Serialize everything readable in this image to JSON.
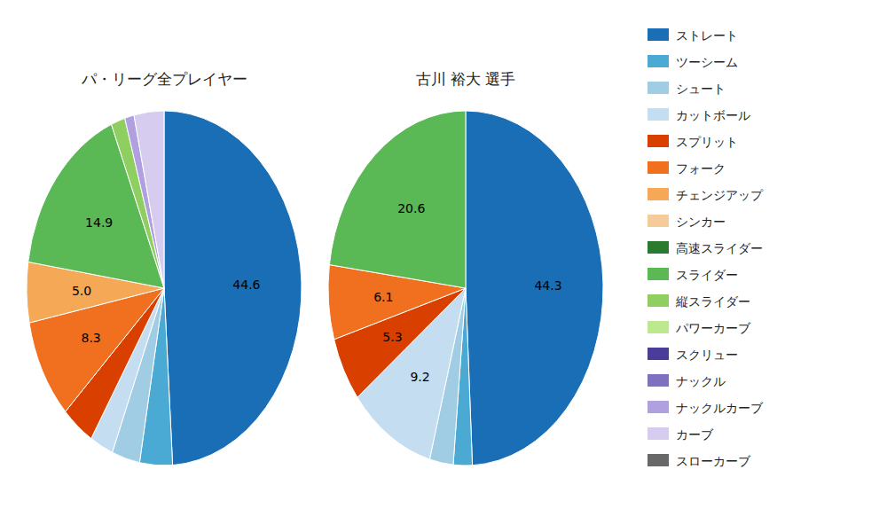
{
  "chart_data": {
    "type": "pie",
    "categories": [
      "ストレート",
      "ツーシーム",
      "シュート",
      "カットボール",
      "スプリット",
      "フォーク",
      "チェンジアップ",
      "シンカー",
      "高速スライダー",
      "スライダー",
      "縦スライダー",
      "パワーカーブ",
      "スクリュー",
      "ナックル",
      "ナックルカーブ",
      "カーブ",
      "スローカーブ"
    ],
    "colors": [
      "#1a6eb5",
      "#4baad4",
      "#a0cce4",
      "#c5ddf0",
      "#d94000",
      "#f07020",
      "#f5a855",
      "#f5cc99",
      "#2a7a30",
      "#5ab855",
      "#8fce60",
      "#bde890",
      "#4a3d9a",
      "#8070c0",
      "#b0a0e0",
      "#d5ccf0",
      "#686868"
    ],
    "series": [
      {
        "name": "パ・リーグ全プレイヤー",
        "values": [
          44.6,
          3.5,
          3.0,
          2.5,
          3.5,
          8.3,
          5.0,
          0.0,
          0.0,
          14.9,
          1.5,
          0.0,
          0.0,
          0.0,
          1.0,
          3.2,
          0.0
        ],
        "value_labels": [
          "44.6",
          null,
          null,
          null,
          null,
          "8.3",
          "5.0",
          null,
          null,
          "14.9",
          null,
          null,
          null,
          null,
          null,
          null,
          null
        ]
      },
      {
        "name": "古川 裕大 選手",
        "values": [
          44.3,
          2.0,
          2.5,
          9.2,
          5.3,
          6.1,
          0.0,
          0.0,
          0.0,
          20.6,
          0.0,
          0.0,
          0.0,
          0.0,
          0.0,
          0.0,
          0.0
        ],
        "value_labels": [
          "44.3",
          null,
          null,
          "9.2",
          "5.3",
          "6.1",
          null,
          null,
          null,
          "20.6",
          null,
          null,
          null,
          null,
          null,
          null,
          null
        ]
      }
    ],
    "data_labels": true,
    "legend": "right"
  }
}
